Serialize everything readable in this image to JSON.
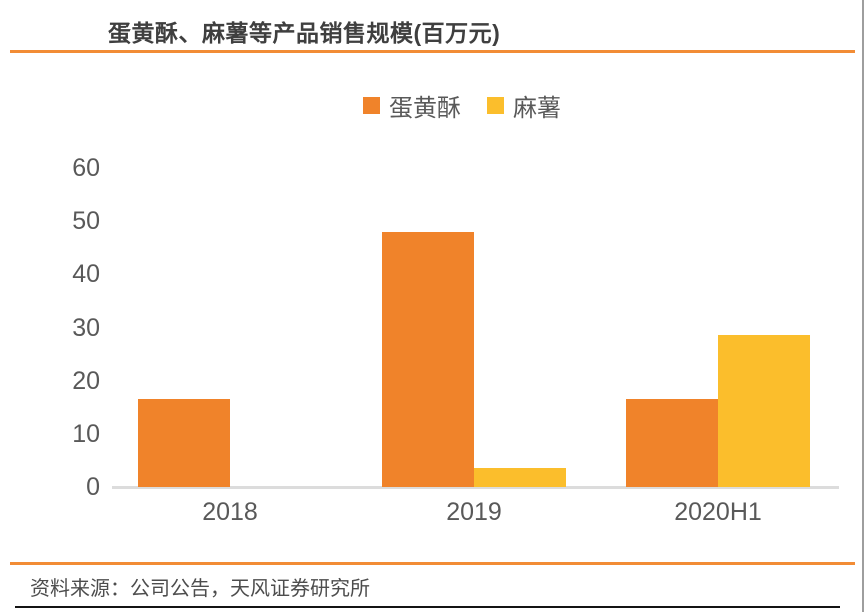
{
  "header": {
    "title": "蛋黄酥、麻薯等产品销售规模(百万元)"
  },
  "footer": {
    "source": "资料来源：公司公告，天风证券研究所"
  },
  "colors": {
    "accent": "#f28c35",
    "bar_orange": "#f0832a",
    "bar_yellow": "#fbbe2c",
    "axis_text": "#595959",
    "axis_line": "#dcdcdc"
  },
  "chart_data": {
    "type": "bar",
    "title": "蛋黄酥、麻薯等产品销售规模(百万元)",
    "categories": [
      "2018",
      "2019",
      "2020H1"
    ],
    "series": [
      {
        "name": "蛋黄酥",
        "key": "egg-yolk-pastry",
        "color": "#f0832a",
        "values": [
          16.5,
          48,
          16.5
        ]
      },
      {
        "name": "麻薯",
        "key": "mochi",
        "color": "#fbbe2c",
        "values": [
          0,
          3.5,
          28.5
        ]
      }
    ],
    "xlabel": "",
    "ylabel": "",
    "ylim": [
      0,
      60
    ],
    "yticks": [
      0,
      10,
      20,
      30,
      40,
      50,
      60
    ],
    "grid": false,
    "legend_position": "top-center"
  }
}
